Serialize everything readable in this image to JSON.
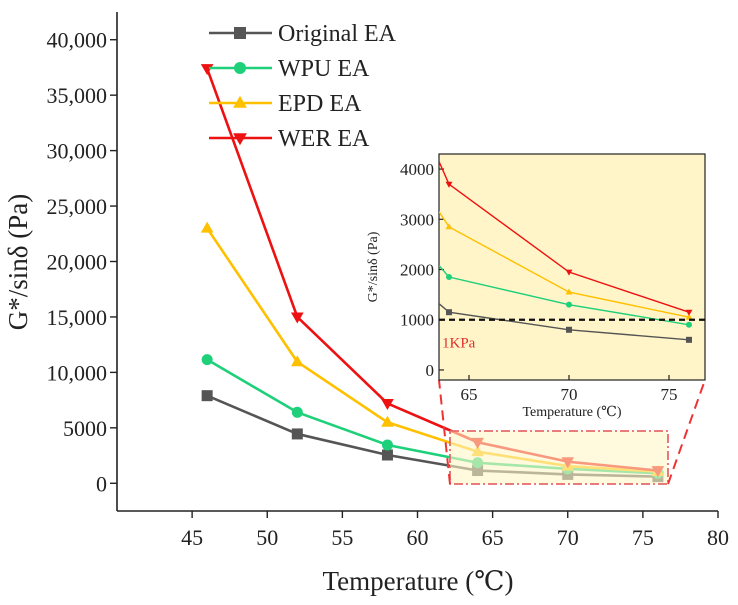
{
  "chart_data": {
    "type": "line",
    "title": "",
    "xlabel": "Temperature (℃)",
    "ylabel": "G*/sinδ (Pa)",
    "xlim": [
      40,
      80
    ],
    "ylim": [
      -2500,
      42500
    ],
    "xticks": [
      45,
      50,
      55,
      60,
      65,
      70,
      75,
      80
    ],
    "yticks": [
      0,
      5000,
      10000,
      15000,
      20000,
      25000,
      30000,
      35000,
      40000
    ],
    "ytick_labels": [
      "0",
      "5000",
      "10,000",
      "15,000",
      "20,000",
      "25,000",
      "30,000",
      "35,000",
      "40,000"
    ],
    "x": [
      46,
      52,
      58,
      64,
      70,
      76
    ],
    "series": [
      {
        "name": "Original EA",
        "color": "#555555",
        "marker": "square",
        "values": [
          7900,
          4450,
          2550,
          1150,
          800,
          600
        ]
      },
      {
        "name": "WPU EA",
        "color": "#1ed07a",
        "marker": "circle",
        "values": [
          11150,
          6400,
          3450,
          1850,
          1300,
          900
        ]
      },
      {
        "name": "EPD EA",
        "color": "#ffc000",
        "marker": "triangle-up",
        "values": [
          23000,
          10950,
          5500,
          2850,
          1550,
          1050
        ]
      },
      {
        "name": "WER EA",
        "color": "#ee1111",
        "marker": "triangle-down",
        "values": [
          37400,
          15000,
          7200,
          3700,
          1950,
          1150
        ]
      }
    ],
    "legend_position": "top-left",
    "grid": false,
    "inset": {
      "xlabel": "Temperature (℃)",
      "ylabel": "G*/sinδ (Pa)",
      "xlim": [
        63.5,
        76.8
      ],
      "ylim": [
        -200,
        4300
      ],
      "xticks": [
        65,
        70,
        75
      ],
      "yticks": [
        0,
        1000,
        2000,
        3000,
        4000
      ],
      "ytick_labels": [
        "0",
        "1000",
        "2000",
        "3000",
        "4000"
      ],
      "x_start": 63.5,
      "series_start_values": [
        1320,
        2080,
        3150,
        4150
      ],
      "reference_line_value": 1000,
      "reference_label": "1KPa",
      "background": "#fff5c8"
    }
  }
}
